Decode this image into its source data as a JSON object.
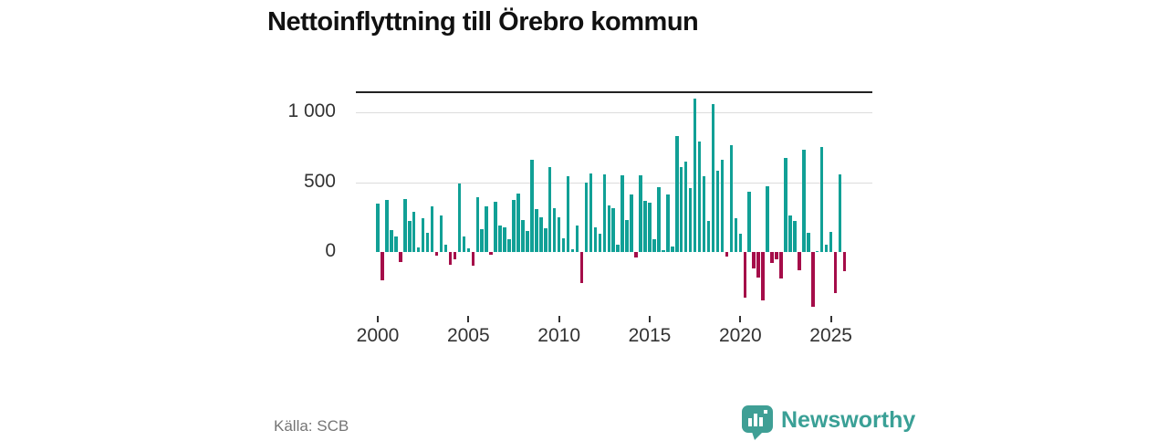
{
  "title": "Nettoinflyttning till Örebro kommun",
  "source_label": "Källa: SCB",
  "branding": {
    "name": "Newsworthy",
    "color": "#3aa096",
    "icon": "bar-chart-speech-bubble"
  },
  "colors": {
    "positive_bar": "#11a096",
    "negative_bar": "#a50d49",
    "gridline": "#dcdcdc",
    "zero_line": "#222222",
    "axis_text": "#333333",
    "source_text": "#757575",
    "title_text": "#111111",
    "background": "#ffffff"
  },
  "chart_data": {
    "type": "bar",
    "title": "Nettoinflyttning till Örebro kommun",
    "ylabel": "",
    "xlabel": "",
    "frequency": "quarterly",
    "period_start": "2000 Q1",
    "period_end": "2025 Q4",
    "legend": "none",
    "grid": "horizontal",
    "ylim": [
      -450,
      1180
    ],
    "y_ticks": [
      {
        "value": 0,
        "label": "0"
      },
      {
        "value": 500,
        "label": "500"
      },
      {
        "value": 1000,
        "label": "1 000"
      }
    ],
    "x_ticks": [
      {
        "label": "2000",
        "quarter_index": 0
      },
      {
        "label": "2005",
        "quarter_index": 20
      },
      {
        "label": "2010",
        "quarter_index": 40
      },
      {
        "label": "2015",
        "quarter_index": 60
      },
      {
        "label": "2020",
        "quarter_index": 80
      },
      {
        "label": "2025",
        "quarter_index": 100
      }
    ],
    "positive_color": "#11a096",
    "negative_color": "#a50d49",
    "values": [
      350,
      -200,
      375,
      160,
      110,
      -75,
      380,
      220,
      290,
      30,
      245,
      135,
      330,
      -25,
      265,
      55,
      -90,
      -55,
      490,
      110,
      25,
      -100,
      395,
      165,
      330,
      -20,
      360,
      190,
      180,
      95,
      375,
      420,
      230,
      150,
      665,
      310,
      250,
      170,
      610,
      315,
      250,
      100,
      545,
      20,
      190,
      -220,
      500,
      565,
      175,
      130,
      555,
      335,
      315,
      50,
      550,
      230,
      415,
      -40,
      550,
      365,
      355,
      95,
      465,
      15,
      410,
      40,
      835,
      610,
      650,
      460,
      1100,
      790,
      545,
      220,
      1060,
      585,
      665,
      -30,
      765,
      240,
      130,
      -330,
      435,
      -115,
      -185,
      -345,
      475,
      -80,
      -50,
      -190,
      675,
      265,
      225,
      -130,
      735,
      140,
      -395,
      5,
      755,
      50,
      145,
      -295,
      555,
      -135
    ]
  }
}
